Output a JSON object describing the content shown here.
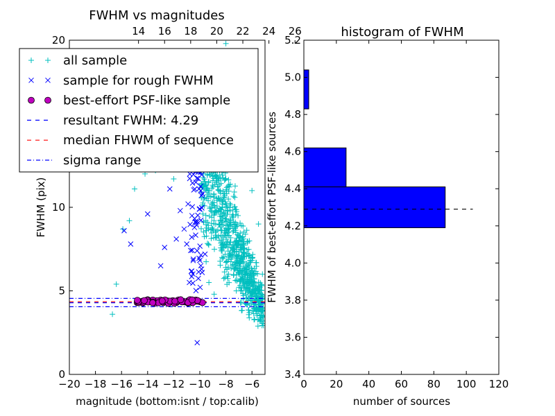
{
  "chart_data": [
    {
      "type": "scatter",
      "title": "FWHM vs magnitudes",
      "xlabel": "magnitude (bottom:isnt / top:calib)",
      "ylabel": "FWHM (pix)",
      "xlim": [
        -20,
        -5
      ],
      "ylim": [
        0,
        20
      ],
      "x_ticks": [
        "−20",
        "−18",
        "−16",
        "−14",
        "−12",
        "−10",
        "−8",
        "−6"
      ],
      "x_tick_values": [
        -20,
        -18,
        -16,
        -14,
        -12,
        -10,
        -8,
        -6
      ],
      "y_ticks": [
        "0",
        "5",
        "10",
        "20"
      ],
      "y_tick_values": [
        0,
        5,
        10,
        20
      ],
      "top_ticks": [
        "14",
        "16",
        "18",
        "20",
        "22",
        "24",
        "26"
      ],
      "top_tick_values_bottom_units": [
        -14.7,
        -12.7,
        -10.7,
        -8.7,
        -6.7,
        -4.7,
        -2.7
      ],
      "legend_position": "upper-left",
      "legend": [
        {
          "label": "all sample",
          "marker": "+",
          "color": "#00bfbf"
        },
        {
          "label": "sample for rough FWHM",
          "marker": "x",
          "color": "#0000ff"
        },
        {
          "label": "best-effort PSF-like sample",
          "marker": "o",
          "color": "#bf00bf"
        },
        {
          "label": "resultant FWHM: 4.29",
          "line": "dashed",
          "color": "#0000ff"
        },
        {
          "label": "median FHWM of sequence",
          "line": "dashed",
          "color": "#ff0000"
        },
        {
          "label": "sigma range",
          "line": "dashdot",
          "color": "#0000ff"
        }
      ],
      "hlines": {
        "resultant": 4.29,
        "median": 4.35,
        "sigma_low": 4.05,
        "sigma_high": 4.55
      },
      "series": [
        {
          "name": "best-effort PSF-like sample",
          "points": [
            [
              -14.8,
              4.3
            ],
            [
              -14.5,
              4.35
            ],
            [
              -14.2,
              4.4
            ],
            [
              -13.9,
              4.35
            ],
            [
              -13.6,
              4.3
            ],
            [
              -13.3,
              4.4
            ],
            [
              -13.0,
              4.45
            ],
            [
              -12.8,
              4.3
            ],
            [
              -12.5,
              4.4
            ],
            [
              -12.2,
              4.35
            ],
            [
              -11.8,
              4.3
            ],
            [
              -11.5,
              4.4
            ],
            [
              -11.2,
              4.35
            ],
            [
              -10.9,
              4.4
            ],
            [
              -10.6,
              4.3
            ],
            [
              -10.3,
              4.45
            ],
            [
              -10.0,
              4.35
            ],
            [
              -9.8,
              4.3
            ]
          ]
        },
        {
          "name": "sample for rough FWHM",
          "points": [
            [
              -15.8,
              8.6
            ],
            [
              -15.3,
              7.8
            ],
            [
              -14.0,
              9.6
            ],
            [
              -13.0,
              6.5
            ],
            [
              -12.7,
              7.6
            ],
            [
              -12.3,
              11.1
            ],
            [
              -11.8,
              8.1
            ],
            [
              -11.5,
              9.8
            ],
            [
              -11.2,
              8.7
            ],
            [
              -10.9,
              10.2
            ],
            [
              -10.6,
              9.5
            ],
            [
              -10.3,
              11.5
            ],
            [
              -10.1,
              12.2
            ],
            [
              -9.8,
              10.8
            ],
            [
              -9.6,
              7.2
            ],
            [
              -10.2,
              1.9
            ],
            [
              -10.8,
              5.5
            ],
            [
              -11.0,
              7.8
            ],
            [
              -10.5,
              6.9
            ],
            [
              -10.0,
              9.9
            ]
          ]
        },
        {
          "name": "all sample",
          "points": [
            [
              -15.9,
              8.7
            ],
            [
              -15.4,
              9.2
            ],
            [
              -15.0,
              11.1
            ],
            [
              -14.2,
              12.0
            ],
            [
              -13.4,
              12.2
            ],
            [
              -12.0,
              11.7
            ],
            [
              -10.6,
              12.6
            ],
            [
              -9.5,
              13.5
            ],
            [
              -9.0,
              15.0
            ],
            [
              -8.6,
              17.0
            ],
            [
              -8.0,
              19.8
            ],
            [
              -7.5,
              16.5
            ],
            [
              -7.0,
              14.0
            ],
            [
              -6.5,
              12.8
            ],
            [
              -6.0,
              11.0
            ],
            [
              -5.5,
              9.0
            ],
            [
              -5.2,
              6.0
            ],
            [
              -8.8,
              8.5
            ],
            [
              -8.3,
              7.0
            ],
            [
              -7.8,
              6.0
            ],
            [
              -7.2,
              5.0
            ],
            [
              -6.8,
              4.3
            ],
            [
              -6.2,
              3.7
            ],
            [
              -5.8,
              3.3
            ],
            [
              -9.3,
              5.5
            ],
            [
              -8.9,
              4.8
            ],
            [
              -16.4,
              5.4
            ],
            [
              -16.7,
              3.6
            ]
          ]
        }
      ]
    },
    {
      "type": "bar",
      "orientation": "horizontal",
      "title": "histogram of FWHM",
      "xlabel": "number of sources",
      "ylabel": "FWHM of best-effort PSF-like sources",
      "xlim": [
        0,
        120
      ],
      "ylim": [
        3.4,
        5.2
      ],
      "x_ticks": [
        "0",
        "20",
        "40",
        "60",
        "80",
        "100",
        "120"
      ],
      "x_tick_values": [
        0,
        20,
        40,
        60,
        80,
        100,
        120
      ],
      "y_ticks": [
        "3.4",
        "3.6",
        "3.8",
        "4.0",
        "4.2",
        "4.4",
        "4.6",
        "4.8",
        "5.0",
        "5.2"
      ],
      "y_tick_values": [
        3.4,
        3.6,
        3.8,
        4.0,
        4.2,
        4.4,
        4.6,
        4.8,
        5.0,
        5.2
      ],
      "bins": [
        {
          "low": 4.19,
          "high": 4.41,
          "count": 87
        },
        {
          "low": 4.41,
          "high": 4.62,
          "count": 26
        },
        {
          "low": 4.62,
          "high": 4.83,
          "count": 0
        },
        {
          "low": 4.83,
          "high": 5.04,
          "count": 3
        }
      ],
      "hline": {
        "value": 4.29,
        "x_range": [
          0,
          104
        ],
        "style": "dashed",
        "color": "#000000"
      },
      "bar_color": "#0000ff"
    }
  ]
}
